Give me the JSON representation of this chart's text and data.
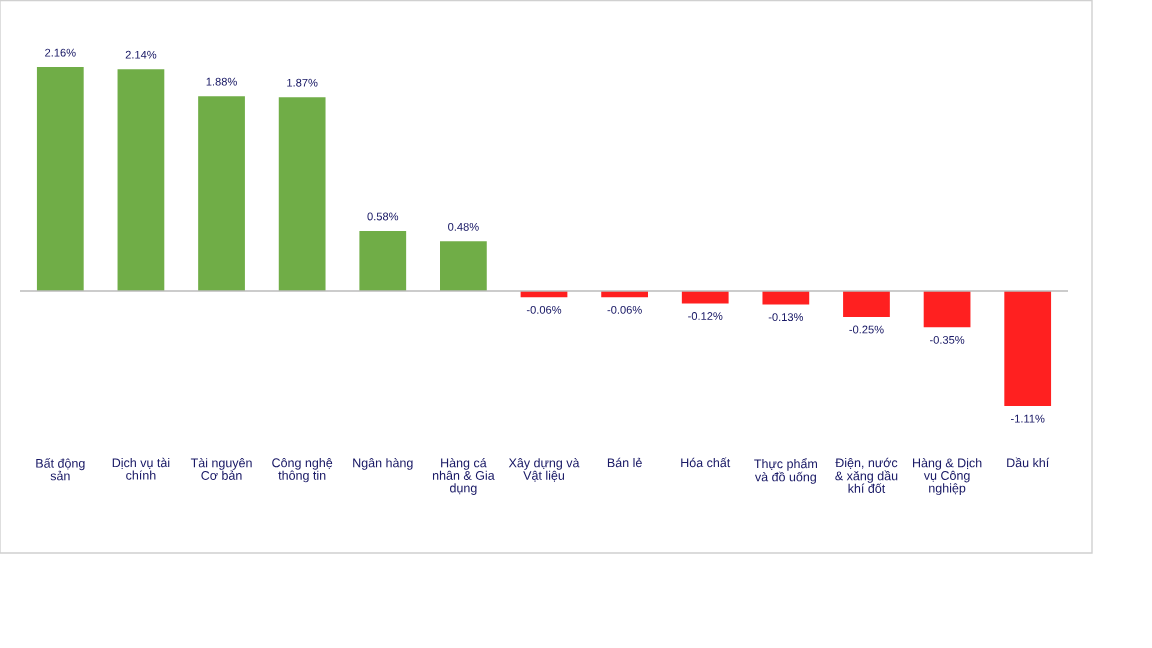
{
  "chart_data": {
    "type": "bar",
    "categories": [
      "Bất động sản",
      "Dịch vụ tài chính",
      "Tài nguyên Cơ bản",
      "Công nghệ thông tin",
      "Ngân hàng",
      "Hàng cá nhân & Gia dụng",
      "Xây dựng và Vật liệu",
      "Bán lẻ",
      "Hóa chất",
      "Thực phẩm và đồ uống",
      "Điện, nước & xăng dầu khí đốt",
      "Hàng & Dịch vụ Công nghiệp",
      "Dầu khí"
    ],
    "values": [
      2.16,
      2.14,
      1.88,
      1.87,
      0.58,
      0.48,
      -0.06,
      -0.06,
      -0.12,
      -0.13,
      -0.25,
      -0.35,
      -1.11
    ],
    "value_labels": [
      "2.16%",
      "2.14%",
      "1.88%",
      "1.87%",
      "0.58%",
      "0.48%",
      "-0.06%",
      "-0.06%",
      "-0.12%",
      "-0.13%",
      "-0.25%",
      "-0.35%",
      "-1.11%"
    ],
    "colors": [
      "#70ad47",
      "#70ad47",
      "#70ad47",
      "#70ad47",
      "#70ad47",
      "#70ad47",
      "#ff2020",
      "#ff2020",
      "#ff2020",
      "#ff2020",
      "#ff2020",
      "#ff2020",
      "#ff2020"
    ],
    "data_labels": true
  }
}
